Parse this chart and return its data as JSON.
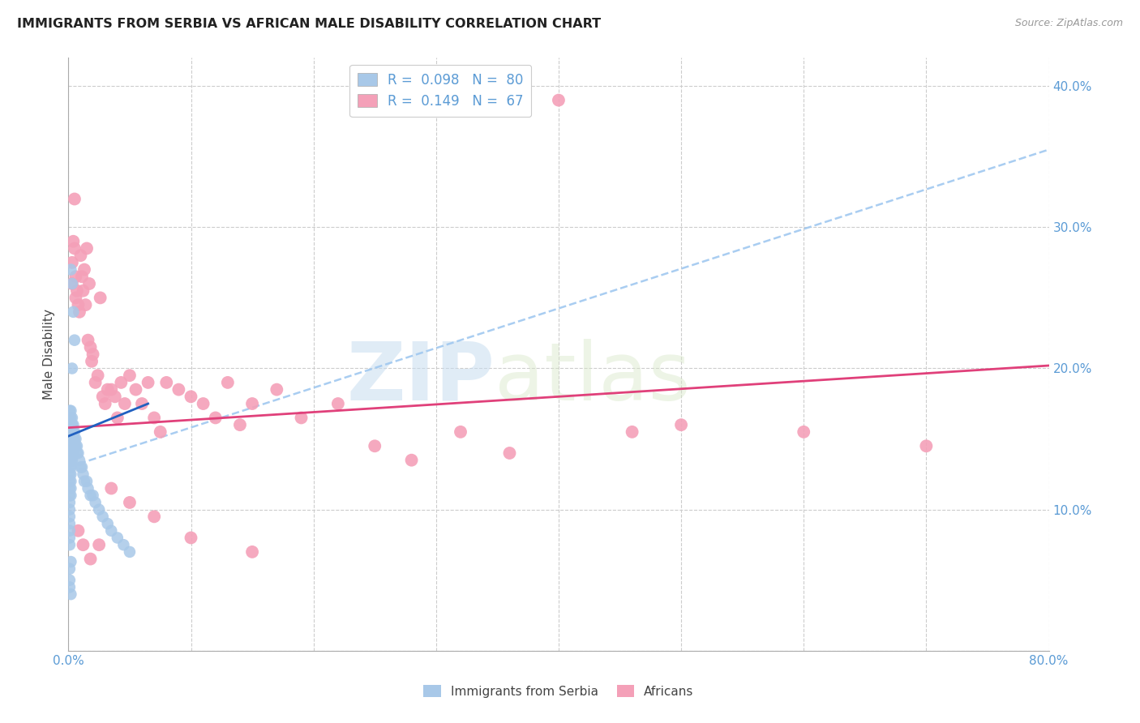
{
  "title": "IMMIGRANTS FROM SERBIA VS AFRICAN MALE DISABILITY CORRELATION CHART",
  "source": "Source: ZipAtlas.com",
  "ylabel": "Male Disability",
  "watermark_part1": "ZIP",
  "watermark_part2": "atlas",
  "xlim": [
    0.0,
    0.8
  ],
  "ylim": [
    0.0,
    0.42
  ],
  "xtick_positions": [
    0.0,
    0.1,
    0.2,
    0.3,
    0.4,
    0.5,
    0.6,
    0.7,
    0.8
  ],
  "xtick_labels": [
    "0.0%",
    "",
    "",
    "",
    "",
    "",
    "",
    "",
    "80.0%"
  ],
  "ytick_positions": [
    0.0,
    0.1,
    0.2,
    0.3,
    0.4
  ],
  "ytick_labels": [
    "",
    "10.0%",
    "20.0%",
    "30.0%",
    "40.0%"
  ],
  "serbia_color": "#a8c8e8",
  "african_color": "#f4a0b8",
  "serbia_line_color": "#2060c0",
  "african_line_color": "#e0407a",
  "dashed_line_color": "#a0c8f0",
  "legend_R1": "R = ",
  "legend_V1": "0.098",
  "legend_N1": "N = ",
  "legend_NV1": "80",
  "legend_R2": "R = ",
  "legend_V2": "0.149",
  "legend_N2": "N = ",
  "legend_NV2": "67",
  "serbia_x": [
    0.001,
    0.001,
    0.001,
    0.001,
    0.001,
    0.001,
    0.001,
    0.001,
    0.001,
    0.001,
    0.001,
    0.001,
    0.001,
    0.001,
    0.001,
    0.001,
    0.001,
    0.001,
    0.001,
    0.001,
    0.002,
    0.002,
    0.002,
    0.002,
    0.002,
    0.002,
    0.002,
    0.002,
    0.002,
    0.002,
    0.002,
    0.002,
    0.002,
    0.003,
    0.003,
    0.003,
    0.003,
    0.003,
    0.003,
    0.003,
    0.004,
    0.004,
    0.004,
    0.004,
    0.004,
    0.005,
    0.005,
    0.005,
    0.006,
    0.006,
    0.007,
    0.007,
    0.008,
    0.009,
    0.01,
    0.011,
    0.012,
    0.013,
    0.015,
    0.016,
    0.018,
    0.02,
    0.022,
    0.025,
    0.028,
    0.032,
    0.035,
    0.04,
    0.045,
    0.05,
    0.002,
    0.003,
    0.004,
    0.005,
    0.003,
    0.002,
    0.001,
    0.001,
    0.001,
    0.002
  ],
  "serbia_y": [
    0.17,
    0.165,
    0.16,
    0.155,
    0.15,
    0.145,
    0.14,
    0.135,
    0.13,
    0.125,
    0.12,
    0.115,
    0.11,
    0.105,
    0.1,
    0.095,
    0.09,
    0.085,
    0.08,
    0.075,
    0.17,
    0.165,
    0.16,
    0.155,
    0.15,
    0.145,
    0.14,
    0.135,
    0.13,
    0.125,
    0.12,
    0.115,
    0.11,
    0.165,
    0.16,
    0.155,
    0.15,
    0.145,
    0.14,
    0.135,
    0.16,
    0.155,
    0.15,
    0.145,
    0.14,
    0.155,
    0.15,
    0.145,
    0.15,
    0.145,
    0.145,
    0.14,
    0.14,
    0.135,
    0.13,
    0.13,
    0.125,
    0.12,
    0.12,
    0.115,
    0.11,
    0.11,
    0.105,
    0.1,
    0.095,
    0.09,
    0.085,
    0.08,
    0.075,
    0.07,
    0.27,
    0.26,
    0.24,
    0.22,
    0.2,
    0.063,
    0.058,
    0.05,
    0.045,
    0.04
  ],
  "african_x": [
    0.003,
    0.003,
    0.004,
    0.005,
    0.006,
    0.006,
    0.007,
    0.008,
    0.009,
    0.01,
    0.011,
    0.012,
    0.013,
    0.014,
    0.015,
    0.016,
    0.017,
    0.018,
    0.019,
    0.02,
    0.022,
    0.024,
    0.026,
    0.028,
    0.03,
    0.032,
    0.035,
    0.038,
    0.04,
    0.043,
    0.046,
    0.05,
    0.055,
    0.06,
    0.065,
    0.07,
    0.075,
    0.08,
    0.09,
    0.1,
    0.11,
    0.12,
    0.13,
    0.14,
    0.15,
    0.17,
    0.19,
    0.22,
    0.25,
    0.28,
    0.32,
    0.36,
    0.4,
    0.46,
    0.5,
    0.6,
    0.7,
    0.005,
    0.008,
    0.012,
    0.018,
    0.025,
    0.035,
    0.05,
    0.07,
    0.1,
    0.15
  ],
  "african_y": [
    0.275,
    0.26,
    0.29,
    0.285,
    0.265,
    0.25,
    0.255,
    0.245,
    0.24,
    0.28,
    0.265,
    0.255,
    0.27,
    0.245,
    0.285,
    0.22,
    0.26,
    0.215,
    0.205,
    0.21,
    0.19,
    0.195,
    0.25,
    0.18,
    0.175,
    0.185,
    0.185,
    0.18,
    0.165,
    0.19,
    0.175,
    0.195,
    0.185,
    0.175,
    0.19,
    0.165,
    0.155,
    0.19,
    0.185,
    0.18,
    0.175,
    0.165,
    0.19,
    0.16,
    0.175,
    0.185,
    0.165,
    0.175,
    0.145,
    0.135,
    0.155,
    0.14,
    0.39,
    0.155,
    0.16,
    0.155,
    0.145,
    0.32,
    0.085,
    0.075,
    0.065,
    0.075,
    0.115,
    0.105,
    0.095,
    0.08,
    0.07
  ],
  "serbia_trend_x": [
    0.0,
    0.065
  ],
  "serbia_trend_y": [
    0.152,
    0.175
  ],
  "african_trend_x": [
    0.0,
    0.8
  ],
  "african_trend_y": [
    0.158,
    0.202
  ],
  "dashed_trend_x": [
    0.0,
    0.8
  ],
  "dashed_trend_y": [
    0.13,
    0.355
  ]
}
